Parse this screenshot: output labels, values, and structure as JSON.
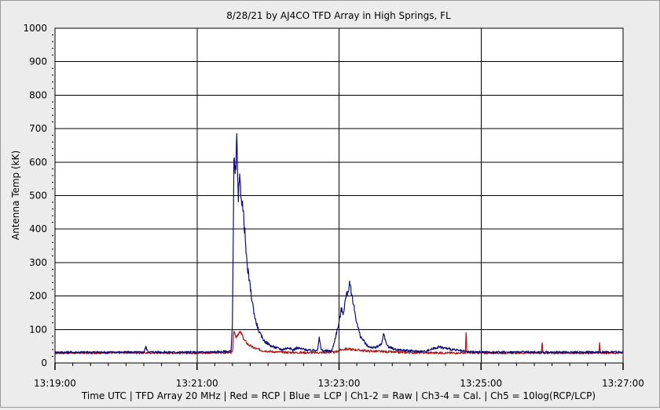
{
  "window": {
    "background": "#ececec",
    "plot_background": "#ffffff",
    "grid_color": "#000000"
  },
  "chart_data": {
    "type": "line",
    "title": "8/28/21  by  AJ4CO TFD Array  in  High Springs, FL",
    "ylabel": "Antenna Temp (kK)",
    "xlabel": "Time UTC | TFD Array 20 MHz | Red = RCP | Blue = LCP | Ch1-2 = Raw | Ch3-4 = Cal. | Ch5 = 10log(RCP/LCP)",
    "xlim": [
      0,
      8
    ],
    "ylim": [
      0,
      1000
    ],
    "x_ticks": [
      {
        "value": 0,
        "label": "13:19:00"
      },
      {
        "value": 2,
        "label": "13:21:00"
      },
      {
        "value": 4,
        "label": "13:23:00"
      },
      {
        "value": 6,
        "label": "13:25:00"
      },
      {
        "value": 8,
        "label": "13:27:00"
      }
    ],
    "y_ticks": [
      0,
      100,
      200,
      300,
      400,
      500,
      600,
      700,
      800,
      900,
      1000
    ],
    "grid": true,
    "series": [
      {
        "name": "Red = RCP",
        "color": "#b01818",
        "x": [
          0,
          0.5,
          1.0,
          1.5,
          2.0,
          2.4,
          2.5,
          2.52,
          2.54,
          2.58,
          2.62,
          2.66,
          2.72,
          2.8,
          2.9,
          3.1,
          3.4,
          3.7,
          3.95,
          4.0,
          4.1,
          4.2,
          4.4,
          4.6,
          4.8,
          5.0,
          5.5,
          5.78,
          5.79,
          5.8,
          6.2,
          6.5,
          6.8,
          6.85,
          6.86,
          6.87,
          7.2,
          7.6,
          7.66,
          7.67,
          7.68,
          8.0
        ],
        "values": [
          30,
          30,
          31,
          30,
          30,
          31,
          32,
          100,
          75,
          88,
          90,
          70,
          55,
          45,
          38,
          33,
          31,
          31,
          32,
          38,
          42,
          40,
          36,
          34,
          32,
          31,
          30,
          30,
          98,
          30,
          30,
          30,
          30,
          30,
          68,
          30,
          30,
          30,
          30,
          65,
          30,
          30
        ]
      },
      {
        "name": "Blue = LCP",
        "color": "#0d0d7a",
        "x": [
          0,
          0.6,
          1.25,
          1.28,
          1.31,
          1.7,
          2.0,
          2.3,
          2.48,
          2.5,
          2.52,
          2.54,
          2.56,
          2.58,
          2.6,
          2.63,
          2.66,
          2.68,
          2.7,
          2.74,
          2.78,
          2.82,
          2.88,
          2.95,
          3.05,
          3.2,
          3.3,
          3.35,
          3.4,
          3.6,
          3.7,
          3.72,
          3.75,
          3.78,
          3.9,
          4.0,
          4.03,
          4.06,
          4.1,
          4.12,
          4.15,
          4.17,
          4.2,
          4.25,
          4.3,
          4.35,
          4.4,
          4.5,
          4.6,
          4.63,
          4.66,
          4.7,
          4.8,
          5.0,
          5.2,
          5.4,
          5.6,
          5.8,
          6.2,
          6.6,
          7.0,
          7.4,
          7.7,
          8.0
        ],
        "values": [
          32,
          32,
          32,
          48,
          33,
          32,
          32,
          33,
          35,
          130,
          610,
          550,
          665,
          480,
          545,
          490,
          430,
          370,
          300,
          240,
          180,
          130,
          90,
          65,
          50,
          40,
          46,
          38,
          45,
          37,
          40,
          75,
          40,
          36,
          36,
          120,
          160,
          150,
          200,
          210,
          235,
          215,
          180,
          120,
          80,
          65,
          50,
          45,
          55,
          90,
          60,
          48,
          40,
          36,
          34,
          48,
          40,
          33,
          32,
          33,
          32,
          32,
          33,
          32
        ]
      }
    ]
  }
}
